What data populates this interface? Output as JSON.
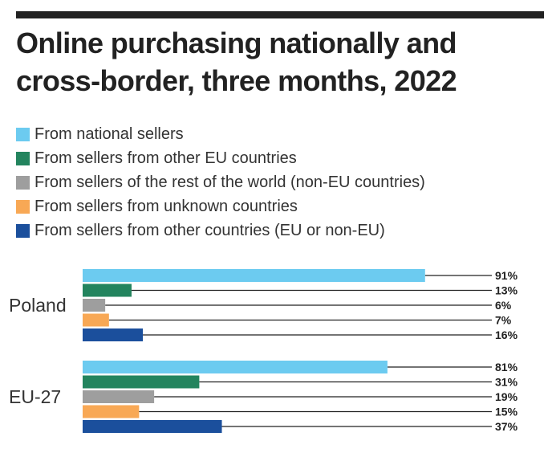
{
  "title": "Online purchasing nationally and cross-border, three months, 2022",
  "colors": {
    "rule": "#222222",
    "leader": "#222222"
  },
  "chart_data": {
    "type": "bar",
    "orientation": "horizontal",
    "title": "Online purchasing nationally and cross-border, three months, 2022",
    "xlabel": "",
    "ylabel": "",
    "xlim": [
      0,
      100
    ],
    "unit": "%",
    "grid": false,
    "legend_position": "top",
    "categories": [
      "Poland",
      "EU-27"
    ],
    "series": [
      {
        "name": "From national sellers",
        "color": "#6ccbf0",
        "values": [
          91,
          81
        ],
        "labels": [
          "91%",
          "81%"
        ]
      },
      {
        "name": "From sellers from other EU countries",
        "color": "#23845e",
        "values": [
          13,
          31
        ],
        "labels": [
          "13%",
          "31%"
        ]
      },
      {
        "name": "From sellers of the rest of the world (non-EU countries)",
        "color": "#9e9e9e",
        "values": [
          6,
          19
        ],
        "labels": [
          "6%",
          "19%"
        ]
      },
      {
        "name": "From sellers from unknown countries",
        "color": "#f8a855",
        "values": [
          7,
          15
        ],
        "labels": [
          "7%",
          "15%"
        ]
      },
      {
        "name": "From sellers from other countries (EU or non-EU)",
        "color": "#1b4f9c",
        "values": [
          16,
          37
        ],
        "labels": [
          "16%",
          "37%"
        ]
      }
    ]
  }
}
